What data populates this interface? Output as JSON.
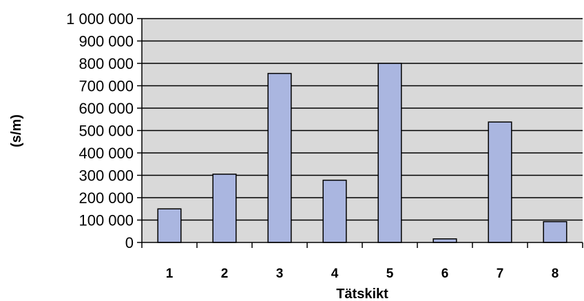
{
  "chart_data": {
    "type": "bar",
    "categories": [
      "1",
      "2",
      "3",
      "4",
      "5",
      "6",
      "7",
      "8"
    ],
    "values": [
      150000,
      305000,
      755000,
      278000,
      800000,
      16000,
      538000,
      93000
    ],
    "xlabel": "Tätskikt",
    "ylabel": "(s/m)",
    "ylim": [
      0,
      1000000
    ],
    "yticks": [
      0,
      100000,
      200000,
      300000,
      400000,
      500000,
      600000,
      700000,
      800000,
      900000,
      1000000
    ],
    "ytick_labels": [
      "0",
      "100 000",
      "200 000",
      "300 000",
      "400 000",
      "500 000",
      "600 000",
      "700 000",
      "800 000",
      "900 000",
      "1 000 000"
    ],
    "grid": true,
    "legend": "none",
    "colors": {
      "plot_background": "#d9d9d9",
      "bar_fill": "#aab6e0",
      "bar_stroke": "#000000",
      "gridline": "#000000"
    }
  }
}
